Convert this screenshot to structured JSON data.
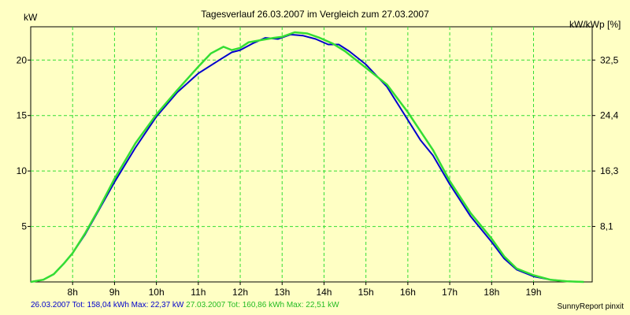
{
  "chart_data": {
    "type": "line",
    "title": "Tagesverlauf 26.03.2007 im Vergleich zum 27.03.2007",
    "ylabel_left": "kW",
    "ylabel_right": "kW/kWp [%]",
    "x_ticks": [
      "8h",
      "9h",
      "10h",
      "11h",
      "12h",
      "13h",
      "14h",
      "15h",
      "16h",
      "17h",
      "18h",
      "19h"
    ],
    "x_tick_values": [
      8,
      9,
      10,
      11,
      12,
      13,
      14,
      15,
      16,
      17,
      18,
      19
    ],
    "xlim": [
      7.0,
      20.4
    ],
    "ylim": [
      0,
      23
    ],
    "y_ticks_left": [
      "5",
      "10",
      "15",
      "20"
    ],
    "y_tick_values": [
      5,
      10,
      15,
      20
    ],
    "y_ticks_right": [
      "8,1",
      "16,3",
      "24,4",
      "32,5"
    ],
    "grid": true,
    "series": [
      {
        "name": "26.03.2007",
        "color": "#0000cc",
        "x": [
          7.0,
          7.3,
          7.55,
          7.8,
          8.0,
          8.3,
          8.6,
          9.0,
          9.5,
          10.0,
          10.5,
          11.0,
          11.5,
          11.8,
          12.0,
          12.3,
          12.6,
          12.9,
          13.2,
          13.5,
          13.8,
          14.1,
          14.35,
          14.6,
          15.0,
          15.5,
          16.0,
          16.3,
          16.6,
          17.0,
          17.5,
          18.0,
          18.3,
          18.6,
          19.0,
          19.4,
          19.8,
          20.2
        ],
        "y": [
          0.0,
          0.2,
          0.7,
          1.7,
          2.6,
          4.3,
          6.3,
          9.0,
          12.1,
          14.9,
          17.1,
          18.8,
          20.0,
          20.7,
          20.9,
          21.5,
          22.0,
          21.9,
          22.3,
          22.2,
          21.9,
          21.4,
          21.4,
          20.8,
          19.6,
          17.6,
          14.6,
          12.8,
          11.4,
          8.8,
          5.9,
          3.6,
          2.1,
          1.1,
          0.5,
          0.2,
          0.05,
          0.0
        ]
      },
      {
        "name": "27.03.2007",
        "color": "#33dd33",
        "x": [
          7.0,
          7.3,
          7.55,
          7.8,
          8.0,
          8.3,
          8.6,
          9.0,
          9.5,
          10.0,
          10.5,
          11.0,
          11.3,
          11.6,
          11.8,
          12.0,
          12.2,
          12.5,
          12.8,
          13.0,
          13.3,
          13.6,
          13.9,
          14.2,
          14.5,
          14.8,
          15.0,
          15.5,
          16.0,
          16.3,
          16.6,
          17.0,
          17.5,
          18.0,
          18.3,
          18.6,
          19.0,
          19.4,
          19.8,
          20.2
        ],
        "y": [
          0.0,
          0.2,
          0.7,
          1.7,
          2.6,
          4.4,
          6.4,
          9.3,
          12.5,
          15.1,
          17.3,
          19.4,
          20.6,
          21.2,
          20.9,
          21.1,
          21.6,
          21.8,
          22.0,
          22.1,
          22.5,
          22.4,
          22.0,
          21.5,
          20.8,
          19.9,
          19.3,
          17.8,
          15.3,
          13.6,
          11.9,
          9.1,
          6.2,
          3.9,
          2.3,
          1.2,
          0.6,
          0.2,
          0.05,
          0.0
        ]
      }
    ]
  },
  "footer": {
    "series1_text": "26.03.2007 Tot: 158,04 kWh Max: 22,37 kW",
    "series2_text": "27.03.2007 Tot: 160,86 kWh Max: 22,51 kW",
    "credit": "SunnyReport pinxit"
  }
}
